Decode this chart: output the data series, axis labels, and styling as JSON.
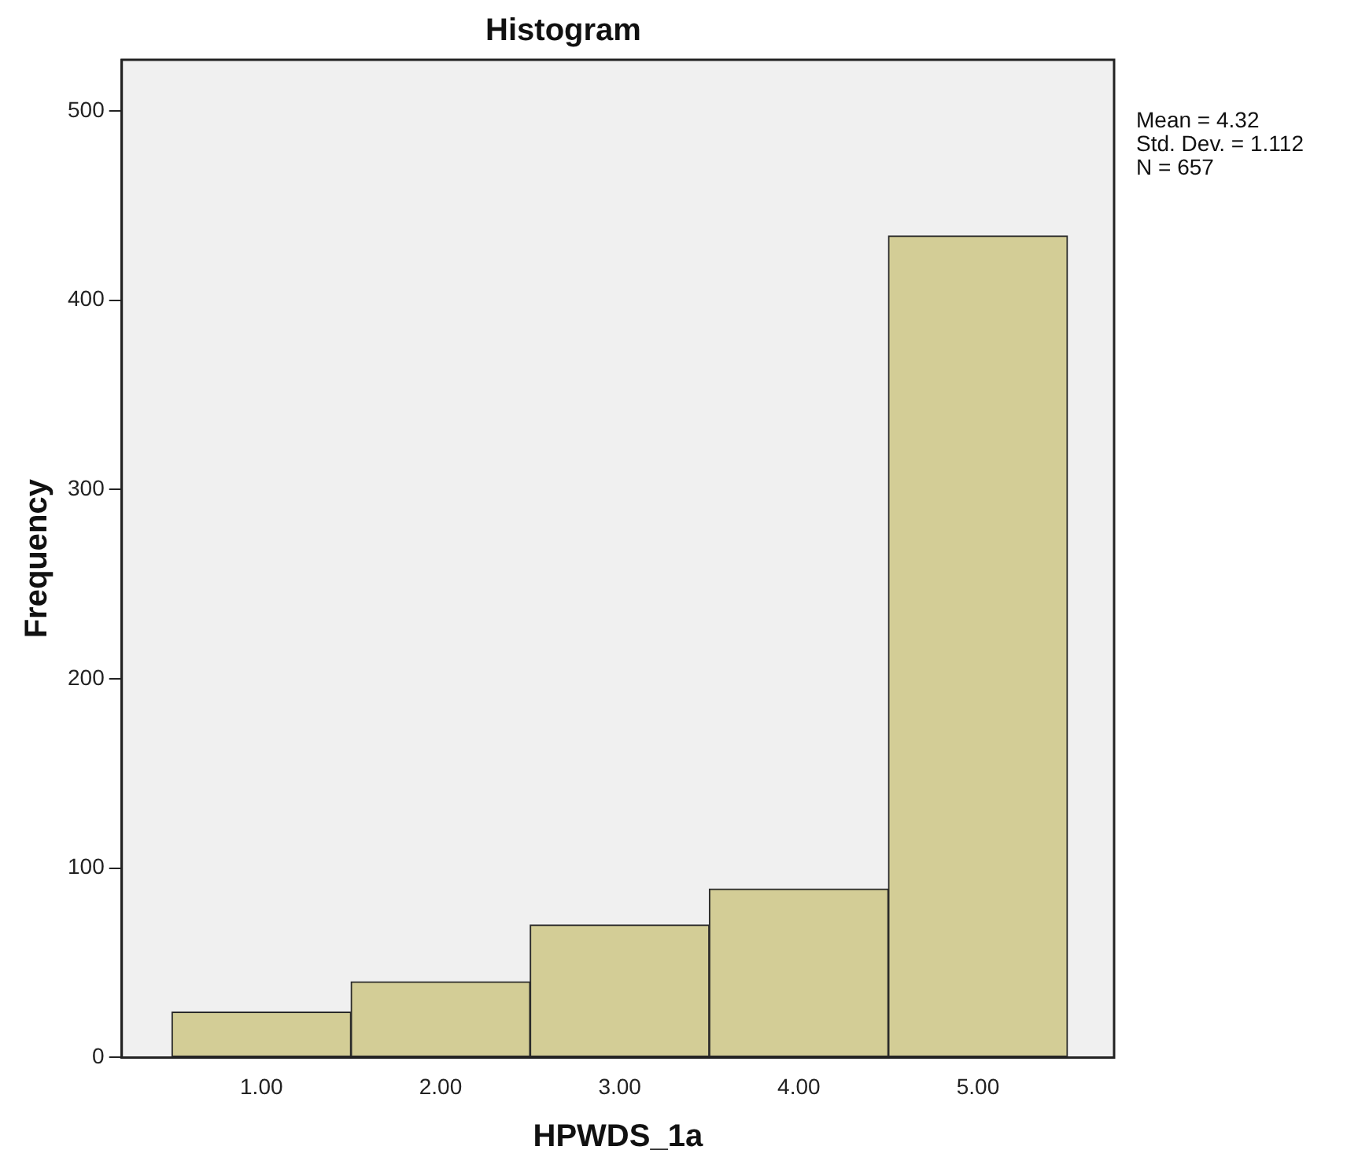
{
  "chart_data": {
    "type": "histogram",
    "title": "Histogram",
    "xlabel": "HPWDS_1a",
    "ylabel": "Frequency",
    "bins": [
      0.5,
      1.5,
      2.5,
      3.5,
      4.5,
      5.5
    ],
    "values": [
      24,
      40,
      70,
      89,
      434
    ],
    "color": "#d3cd96",
    "xlim": [
      0.22,
      5.76
    ],
    "xticks": [
      {
        "value": 1,
        "label": "1.00"
      },
      {
        "value": 2,
        "label": "2.00"
      },
      {
        "value": 3,
        "label": "3.00"
      },
      {
        "value": 4,
        "label": "4.00"
      },
      {
        "value": 5,
        "label": "5.00"
      }
    ],
    "ylim": [
      0,
      527
    ],
    "yticks": [
      0,
      100,
      200,
      300,
      400,
      500
    ],
    "annotations": [
      "Mean = 4.32",
      "Std. Dev. = 1.112",
      "N = 657"
    ],
    "grid": false,
    "legend": false
  }
}
